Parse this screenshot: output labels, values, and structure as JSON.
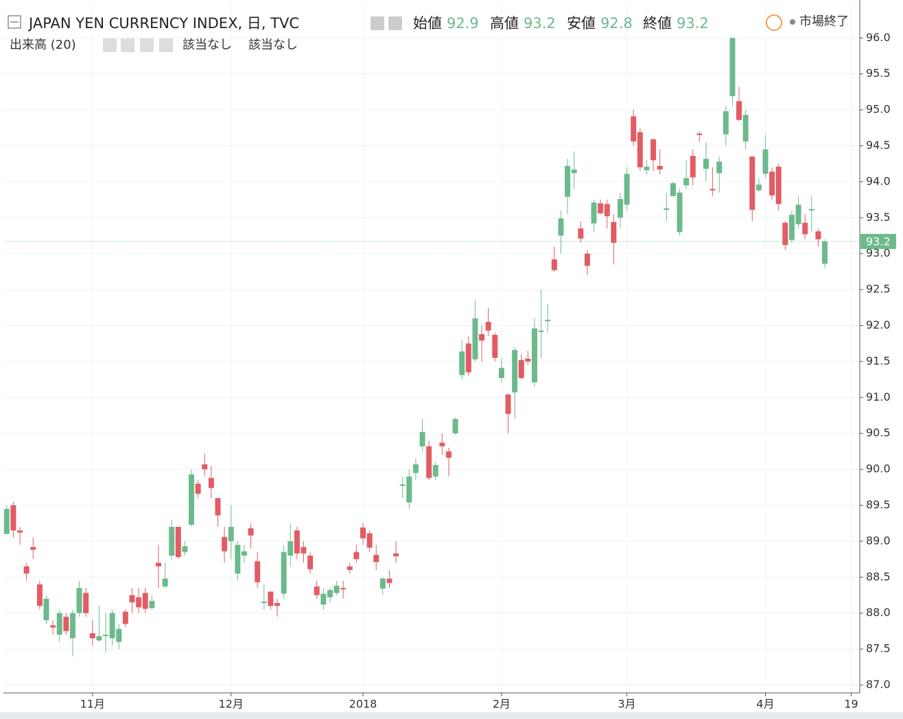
{
  "chart_data": {
    "type": "candlestick",
    "title": "JAPAN YEN CURRENCY INDEX, 日, TVC",
    "ohlc_header": {
      "open_label": "始値",
      "open": 92.9,
      "high_label": "高値",
      "high": 93.2,
      "low_label": "安値",
      "low": 92.8,
      "close_label": "終値",
      "close": 93.2
    },
    "volume_label": "出来高 (20)",
    "na_labels": [
      "該当なし",
      "該当なし"
    ],
    "market_status": "市場終了",
    "current_price": 93.17,
    "current_price_label": "93.2",
    "up_color": "#6cba8c",
    "down_color": "#e15c64",
    "grid": true,
    "open": [
      89.1,
      89.5,
      89.15,
      88.65,
      88.92,
      88.4,
      87.9,
      87.83,
      87.7,
      87.95,
      87.65,
      88.0,
      88.28,
      87.72,
      87.62,
      87.68,
      87.65,
      87.6,
      88.02,
      88.25,
      88.22,
      88.28,
      88.07,
      88.7,
      88.37,
      88.8,
      89.2,
      88.85,
      89.23,
      89.8,
      90.07,
      89.88,
      89.6,
      89.06,
      89.0,
      88.55,
      88.8,
      89.18,
      88.72,
      88.14,
      88.3,
      88.14,
      88.27,
      88.8,
      89.15,
      88.92,
      88.8,
      88.37,
      88.12,
      88.22,
      88.28,
      88.35,
      88.65,
      88.85,
      89.19,
      89.11,
      88.81,
      88.34,
      88.48,
      88.83,
      89.77,
      89.54,
      89.95,
      90.32,
      90.32,
      89.9,
      90.37,
      90.25,
      90.5,
      91.31,
      91.75,
      91.53,
      91.88,
      92.05,
      91.87,
      91.27,
      91.04,
      91.07,
      91.52,
      91.54,
      91.21,
      91.91,
      92.06,
      92.92,
      93.25,
      93.79,
      94.12,
      93.35,
      93.0,
      93.42,
      93.7,
      93.69,
      93.44,
      93.5,
      93.68,
      94.91,
      94.69,
      94.16,
      94.59,
      94.22,
      93.61,
      93.8,
      93.3,
      93.95,
      94.36,
      94.67,
      94.18,
      93.9,
      94.12,
      94.66,
      95.19,
      95.12,
      94.56,
      94.35,
      93.88,
      94.11,
      94.14,
      94.21,
      93.43,
      93.19,
      93.41,
      93.43,
      93.6,
      93.31,
      92.86
    ],
    "high": [
      89.5,
      89.55,
      89.2,
      88.7,
      89.05,
      88.45,
      88.25,
      87.9,
      88.05,
      88.0,
      88.05,
      88.45,
      88.35,
      87.9,
      88.1,
      88.0,
      88.05,
      87.85,
      88.05,
      88.35,
      88.35,
      88.35,
      88.25,
      88.95,
      88.7,
      89.3,
      89.2,
      89.0,
      90.0,
      89.85,
      90.22,
      90.05,
      89.6,
      89.2,
      89.5,
      89.0,
      88.95,
      89.25,
      88.85,
      88.4,
      88.3,
      88.2,
      88.95,
      89.25,
      89.2,
      89.0,
      88.85,
      88.45,
      88.35,
      88.35,
      88.45,
      88.45,
      88.7,
      88.95,
      89.25,
      89.15,
      88.95,
      88.5,
      88.6,
      89.0,
      89.9,
      90.0,
      90.15,
      90.7,
      90.4,
      90.1,
      90.5,
      90.3,
      90.72,
      91.8,
      91.85,
      92.35,
      92.0,
      92.25,
      91.9,
      91.55,
      91.05,
      91.7,
      91.6,
      91.65,
      92.1,
      92.5,
      92.3,
      93.1,
      93.6,
      94.32,
      94.42,
      93.45,
      93.05,
      93.75,
      93.75,
      93.75,
      93.55,
      93.85,
      94.2,
      95.0,
      94.75,
      94.3,
      94.6,
      94.45,
      93.85,
      94.0,
      93.9,
      94.3,
      94.45,
      94.7,
      94.55,
      94.2,
      94.35,
      95.05,
      96.0,
      95.32,
      95.0,
      94.35,
      94.05,
      94.65,
      94.2,
      94.25,
      93.45,
      93.6,
      93.8,
      93.55,
      93.8,
      93.35,
      93.2
    ],
    "low": [
      89.1,
      89.05,
      88.95,
      88.45,
      88.75,
      88.05,
      87.85,
      87.7,
      87.6,
      87.7,
      87.4,
      87.95,
      87.95,
      87.55,
      87.6,
      87.45,
      87.55,
      87.5,
      87.8,
      88.0,
      88.0,
      88.0,
      88.05,
      88.35,
      88.35,
      88.75,
      88.75,
      88.8,
      89.2,
      89.6,
      89.9,
      89.6,
      89.2,
      88.7,
      88.75,
      88.45,
      88.7,
      88.9,
      88.35,
      88.05,
      88.05,
      87.95,
      88.2,
      88.65,
      88.75,
      88.7,
      88.55,
      88.2,
      88.05,
      88.15,
      88.25,
      88.2,
      88.55,
      88.7,
      88.95,
      88.85,
      88.6,
      88.25,
      88.35,
      88.7,
      89.6,
      89.45,
      89.85,
      90.25,
      89.85,
      89.85,
      90.2,
      89.9,
      90.48,
      91.25,
      91.3,
      91.5,
      91.5,
      91.85,
      91.5,
      91.2,
      90.5,
      90.7,
      91.25,
      91.45,
      91.15,
      91.55,
      91.9,
      92.75,
      93.0,
      93.55,
      93.9,
      93.15,
      92.7,
      93.3,
      93.55,
      93.35,
      92.85,
      93.35,
      93.6,
      94.5,
      94.15,
      94.1,
      94.15,
      94.1,
      93.45,
      93.8,
      93.25,
      93.9,
      93.95,
      94.55,
      94.0,
      93.8,
      93.85,
      94.5,
      95.05,
      94.85,
      94.45,
      93.45,
      93.85,
      94.05,
      93.75,
      93.6,
      93.05,
      93.15,
      93.35,
      93.2,
      93.3,
      93.1,
      92.8
    ],
    "close": [
      89.45,
      89.15,
      89.12,
      88.55,
      88.88,
      88.1,
      88.2,
      87.8,
      88.0,
      87.75,
      88.0,
      88.35,
      88.0,
      87.65,
      87.68,
      87.7,
      88.0,
      87.78,
      87.85,
      88.15,
      88.08,
      88.06,
      88.17,
      88.65,
      88.48,
      89.2,
      88.78,
      88.93,
      89.93,
      89.66,
      90.0,
      89.74,
      89.36,
      88.86,
      89.2,
      88.95,
      88.86,
      89.08,
      88.43,
      88.16,
      88.1,
      88.1,
      88.85,
      89.0,
      88.83,
      88.83,
      88.61,
      88.25,
      88.27,
      88.32,
      88.38,
      88.33,
      88.6,
      88.75,
      89.04,
      88.91,
      88.71,
      88.48,
      88.42,
      88.79,
      89.79,
      89.9,
      90.07,
      90.52,
      89.88,
      90.06,
      90.32,
      90.16,
      90.7,
      91.64,
      91.35,
      92.1,
      91.79,
      91.93,
      91.55,
      91.41,
      90.77,
      91.66,
      91.27,
      91.5,
      91.96,
      91.93,
      92.08,
      92.77,
      93.49,
      94.22,
      94.17,
      93.21,
      92.83,
      93.71,
      93.56,
      93.52,
      93.15,
      93.76,
      94.11,
      94.56,
      94.2,
      94.21,
      94.3,
      94.17,
      93.63,
      93.98,
      93.85,
      94.05,
      94.06,
      94.65,
      94.32,
      93.88,
      94.28,
      94.98,
      96.0,
      94.86,
      94.93,
      93.61,
      93.96,
      94.45,
      93.81,
      93.69,
      93.12,
      93.54,
      93.68,
      93.27,
      93.62,
      93.2,
      93.17
    ],
    "xlim": [
      -0.5,
      129.3
    ],
    "xticks": [
      {
        "value": 13,
        "label": "11月"
      },
      {
        "value": 34,
        "label": "12月"
      },
      {
        "value": 54,
        "label": "2018"
      },
      {
        "value": 75,
        "label": "2月"
      },
      {
        "value": 94,
        "label": "3月"
      },
      {
        "value": 115,
        "label": "4月"
      },
      {
        "value": 128,
        "label": "19"
      }
    ],
    "ylim": [
      86.89,
      96.48
    ],
    "yticks": [
      {
        "value": 87,
        "label": "87.0"
      },
      87.5,
      {
        "value": 88,
        "label": "88.0"
      },
      88.5,
      {
        "value": 89,
        "label": "89.0"
      },
      89.5,
      {
        "value": 90,
        "label": "90.0"
      },
      90.5,
      {
        "value": 91,
        "label": "91.0"
      },
      91.5,
      {
        "value": 92,
        "label": "92.0"
      },
      92.5,
      {
        "value": 93,
        "label": "93.0"
      },
      93.5,
      {
        "value": 94,
        "label": "94.0"
      },
      94.5,
      {
        "value": 95,
        "label": "95.0"
      },
      95.5,
      {
        "value": 96,
        "label": "96.0"
      }
    ]
  }
}
